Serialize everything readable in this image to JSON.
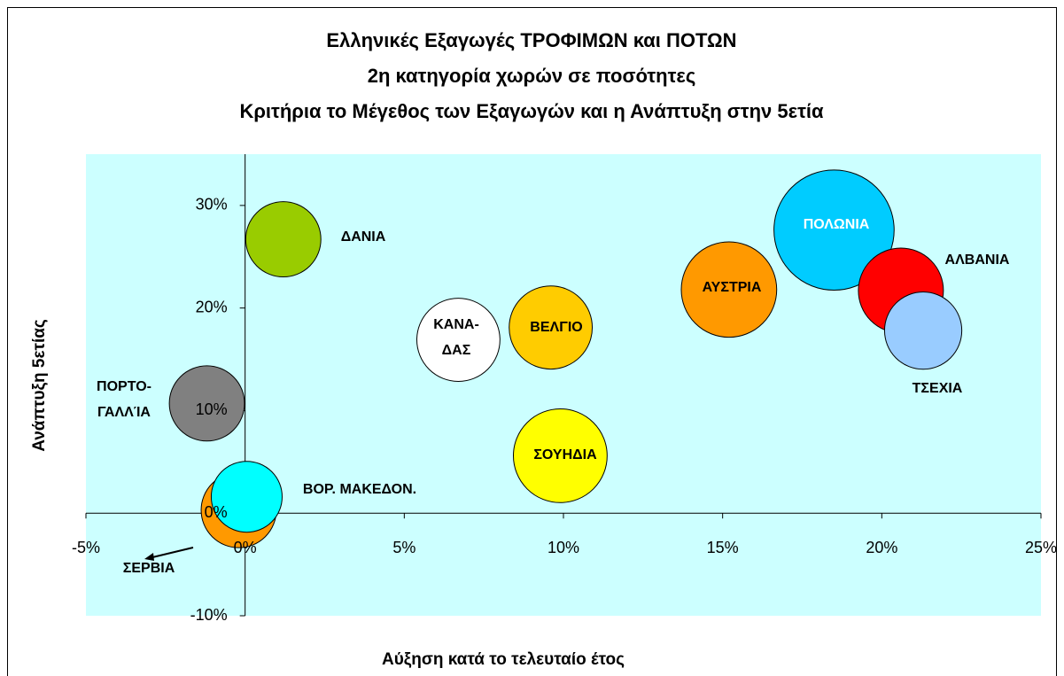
{
  "chart_data": {
    "type": "bubble",
    "title": [
      "Ελληνικές Εξαγωγές ΤΡΟΦΙΜΩΝ και ΠΟΤΩΝ",
      "2η κατηγορία χωρών σε ποσότητες",
      "Κριτήρια το Μέγεθος των Εξαγωγών και η Ανάπτυξη στην 5ετία"
    ],
    "x_label": "Αύξηση κατά το τελευταίο έτος",
    "y_label": "Ανάπτυξη 5ετίας",
    "xlim": [
      -5,
      25
    ],
    "ylim": [
      -10,
      35
    ],
    "xticks": [
      {
        "value": -5,
        "label": "-5%"
      },
      {
        "value": 0,
        "label": "0%"
      },
      {
        "value": 5,
        "label": "5%"
      },
      {
        "value": 10,
        "label": "10%"
      },
      {
        "value": 15,
        "label": "15%"
      },
      {
        "value": 20,
        "label": "20%"
      },
      {
        "value": 25,
        "label": "25%"
      }
    ],
    "yticks": [
      {
        "value": -10,
        "label": "-10%"
      },
      {
        "value": 0,
        "label": "0%"
      },
      {
        "value": 10,
        "label": "10%"
      },
      {
        "value": 20,
        "label": "20%"
      },
      {
        "value": 30,
        "label": "30%"
      }
    ],
    "labels": [
      [
        "ΔΑΝΙΑ"
      ],
      [
        "ΠΟΡΤΟ-",
        "ΓΑΛΛΊΑ"
      ],
      [
        "ΚΑΝΑ-",
        "ΔΑΣ"
      ],
      [
        "ΒΕΛΓΙΟ"
      ],
      [
        "ΣΟΥΗΔΙΑ"
      ],
      [
        "ΑΥΣΤΡΙΑ"
      ],
      [
        "ΠΟΛΩΝΙΑ"
      ],
      [
        "ΑΛΒΑΝΙΑ"
      ],
      [
        "ΤΣΕΧΙΑ"
      ],
      [
        "ΣΕΡΒΙΑ"
      ],
      [
        "ΒΟΡ. ΜΑΚΕΔΟΝ."
      ]
    ],
    "x": [
      1.2,
      -1.2,
      6.7,
      9.6,
      9.9,
      15.2,
      18.5,
      20.6,
      21.3,
      -0.2,
      0.05
    ],
    "values": [
      26.7,
      10.7,
      16.9,
      18.1,
      5.6,
      21.8,
      27.6,
      21.7,
      17.8,
      0.3,
      1.6
    ],
    "sizes": [
      18,
      18,
      22,
      22,
      28,
      29,
      46,
      23,
      19,
      18,
      16
    ],
    "colors": [
      "#99cc00",
      "#808080",
      "#ffffff",
      "#ffcc00",
      "#ffff00",
      "#ff9900",
      "#00ccff",
      "#ff0000",
      "#99ccff",
      "#ff9900",
      "#00ffff"
    ],
    "plot_background": "#ccffff"
  }
}
